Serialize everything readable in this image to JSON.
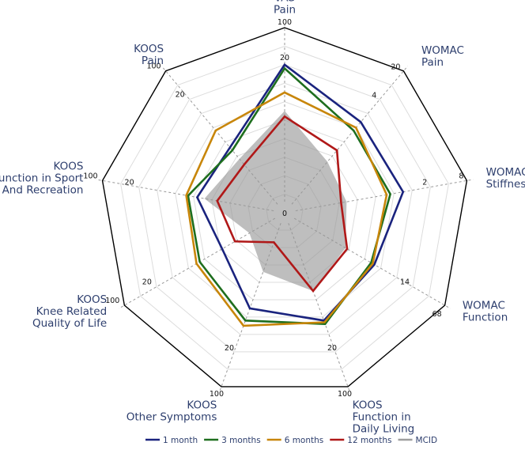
{
  "chart_data": {
    "type": "radar",
    "title": "",
    "axes": [
      {
        "label": [
          "VAS",
          "Pain"
        ],
        "ticks": [
          "100",
          "20"
        ]
      },
      {
        "label": [
          "WOMAC",
          "Pain"
        ],
        "ticks": [
          "20",
          "4"
        ]
      },
      {
        "label": [
          "WOMAC",
          "Stiffness"
        ],
        "ticks": [
          "8",
          "2"
        ]
      },
      {
        "label": [
          "WOMAC",
          "Function"
        ],
        "ticks": [
          "68",
          "14"
        ]
      },
      {
        "label": [
          "KOOS",
          "Function in",
          "Daily Living"
        ],
        "ticks": [
          "100",
          "20"
        ]
      },
      {
        "label": [
          "KOOS",
          "Other Symptoms"
        ],
        "ticks": [
          "100",
          "20"
        ]
      },
      {
        "label": [
          "KOOS",
          "Knee Related",
          "Quality of Life"
        ],
        "ticks": [
          "100",
          "20"
        ]
      },
      {
        "label": [
          "KOOS",
          "Function in Sport",
          "And Recreation"
        ],
        "ticks": [
          "100",
          "20"
        ]
      },
      {
        "label": [
          "KOOS",
          "Pain"
        ],
        "ticks": [
          "100",
          "20"
        ]
      }
    ],
    "center_label": "0",
    "radial_range": [
      0,
      1
    ],
    "grid": true,
    "grid_rings": 10,
    "tick_positions": [
      1.0,
      0.8
    ],
    "series": [
      {
        "name": "1 month",
        "color": "#1a237e",
        "values": [
          0.8,
          0.64,
          0.65,
          0.56,
          0.62,
          0.55,
          0.39,
          0.48,
          0.46
        ]
      },
      {
        "name": "3 months",
        "color": "#1e6e1e",
        "values": [
          0.78,
          0.58,
          0.58,
          0.54,
          0.64,
          0.62,
          0.53,
          0.53,
          0.44
        ]
      },
      {
        "name": "6 months",
        "color": "#c8860a",
        "values": [
          0.65,
          0.6,
          0.56,
          0.55,
          0.63,
          0.65,
          0.55,
          0.54,
          0.58
        ]
      },
      {
        "name": "12 months",
        "color": "#b01818",
        "values": [
          0.52,
          0.44,
          0.31,
          0.39,
          0.45,
          0.17,
          0.31,
          0.37,
          0.34
        ]
      },
      {
        "name": "MCID",
        "color": "#9e9e9e",
        "values": [
          0.55,
          0.36,
          0.34,
          0.38,
          0.45,
          0.34,
          0.22,
          0.44,
          0.38
        ]
      }
    ],
    "legend": {
      "position": "bottom"
    }
  }
}
